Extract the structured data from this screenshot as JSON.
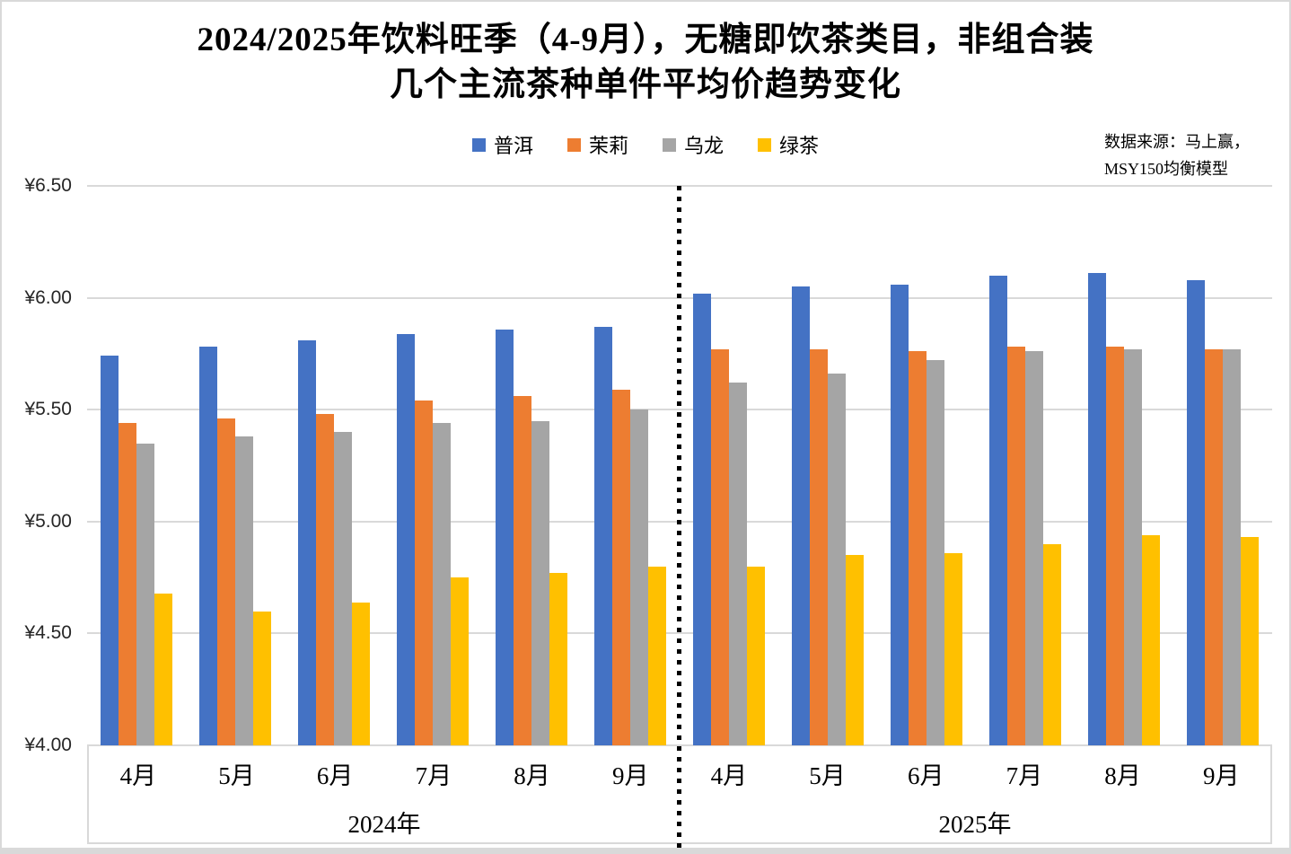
{
  "title": {
    "line1": "2024/2025年饮料旺季（4-9月），无糖即饮茶类目，非组合装",
    "line2": "几个主流茶种单件平均价趋势变化"
  },
  "source_note": {
    "line1": "数据来源：马上赢，",
    "line2": "MSY150均衡模型"
  },
  "colors": {
    "puer": "#4472C4",
    "jasmine": "#ED7D31",
    "oolong": "#A5A5A5",
    "green_tea": "#FFC000",
    "gridline": "#D9D9D9",
    "divider": "#000000"
  },
  "chart_data": {
    "type": "bar",
    "title": "2024/2025年饮料旺季（4-9月），无糖即饮茶类目，非组合装 几个主流茶种单件平均价趋势变化",
    "grid": true,
    "legend_position": "top",
    "ylim": [
      4.0,
      6.5
    ],
    "y_tick_labels": [
      "¥6.50",
      "¥6.00",
      "¥5.50",
      "¥5.00",
      "¥4.50",
      "¥4.00"
    ],
    "year_groups": [
      {
        "year_label": "2024年",
        "month_labels": [
          "4月",
          "5月",
          "6月",
          "7月",
          "8月",
          "9月"
        ]
      },
      {
        "year_label": "2025年",
        "month_labels": [
          "4月",
          "5月",
          "6月",
          "7月",
          "8月",
          "9月"
        ]
      }
    ],
    "series": [
      {
        "name": "普洱",
        "key": "puer",
        "color": "#4472C4",
        "values_by_year": [
          [
            5.74,
            5.78,
            5.81,
            5.84,
            5.86,
            5.87
          ],
          [
            6.02,
            6.05,
            6.06,
            6.1,
            6.11,
            6.08
          ]
        ]
      },
      {
        "name": "茉莉",
        "key": "jasmine",
        "color": "#ED7D31",
        "values_by_year": [
          [
            5.44,
            5.46,
            5.48,
            5.54,
            5.56,
            5.59
          ],
          [
            5.77,
            5.77,
            5.76,
            5.78,
            5.78,
            5.77
          ]
        ]
      },
      {
        "name": "乌龙",
        "key": "oolong",
        "color": "#A5A5A5",
        "values_by_year": [
          [
            5.35,
            5.38,
            5.4,
            5.44,
            5.45,
            5.5
          ],
          [
            5.62,
            5.66,
            5.72,
            5.76,
            5.77,
            5.77
          ]
        ]
      },
      {
        "name": "绿茶",
        "key": "green-tea",
        "color": "#FFC000",
        "values_by_year": [
          [
            4.68,
            4.6,
            4.64,
            4.75,
            4.77,
            4.8
          ],
          [
            4.8,
            4.85,
            4.86,
            4.9,
            4.94,
            4.93
          ]
        ]
      }
    ]
  }
}
